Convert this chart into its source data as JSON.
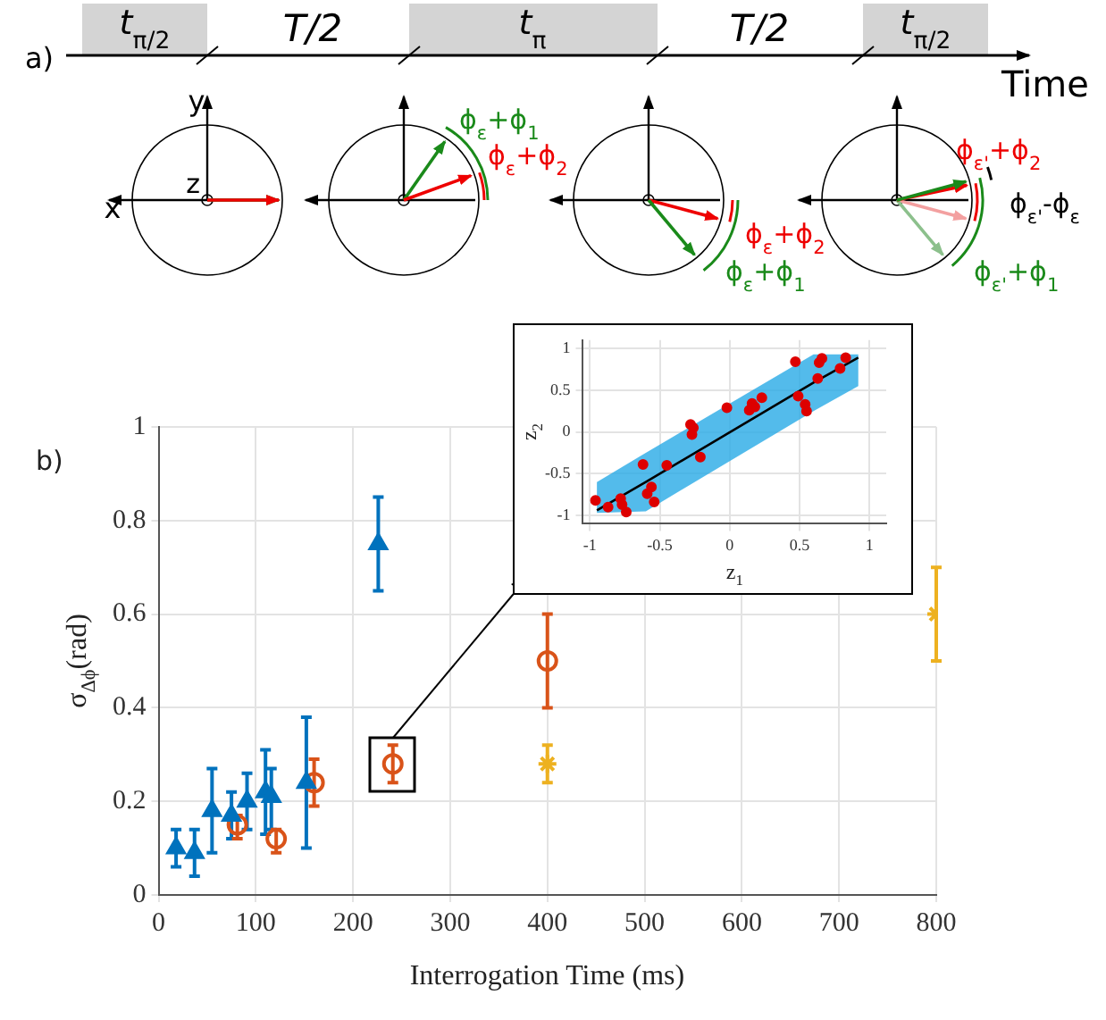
{
  "chart_data": [
    {
      "type": "other",
      "annotations": [
        "a)",
        "t$_{π/2}$",
        "T/2",
        "t$_{π}$",
        "T/2",
        "t$_{π/2}$",
        "Time",
        "y",
        "z",
        "x",
        "ϕ$_{ε}$+ϕ$_{1}$",
        "ϕ$_{ε}$+ϕ$_{2}$",
        "ϕ$_{ε}$+ϕ$_{2}$",
        "ϕ$_{ε}$+ϕ$_{1}$",
        "ϕ$_{ε'}$+ϕ$_{2}$",
        "ϕ$_{ε'}$-ϕ$_{ε}$",
        "ϕ$_{ε'}$+ϕ$_{1}$"
      ]
    },
    {
      "type": "scatter",
      "xlabel": "Interrogation Time (ms)",
      "ylabel": "σ$_{Δϕ}$(rad)",
      "annotations": [
        "b)"
      ],
      "xlim": [
        0,
        800
      ],
      "xticks": [
        0,
        100,
        200,
        300,
        400,
        500,
        600,
        700,
        800
      ],
      "ylim": [
        0,
        1
      ],
      "yticks": [
        0,
        0.2,
        0.4,
        0.6,
        0.8,
        1
      ],
      "grid": true,
      "series": [
        {
          "color": "#0072bd",
          "marker": "triangle",
          "x": [
            18,
            37,
            55,
            75,
            91,
            110,
            116,
            152,
            226
          ],
          "values": [
            0.1,
            0.09,
            0.18,
            0.17,
            0.2,
            0.22,
            0.21,
            0.24,
            0.75
          ],
          "errors": [
            [
              0.06,
              0.14
            ],
            [
              0.04,
              0.14
            ],
            [
              0.09,
              0.27
            ],
            [
              0.12,
              0.22
            ],
            [
              0.14,
              0.26
            ],
            [
              0.13,
              0.31
            ],
            [
              0.14,
              0.27
            ],
            [
              0.1,
              0.38
            ],
            [
              0.65,
              0.85
            ]
          ]
        },
        {
          "color": "#d95319",
          "marker": "circle",
          "x": [
            81,
            121,
            160,
            241,
            400
          ],
          "values": [
            0.15,
            0.12,
            0.24,
            0.28,
            0.5
          ],
          "errors": [
            [
              0.12,
              0.17
            ],
            [
              0.09,
              0.14
            ],
            [
              0.19,
              0.29
            ],
            [
              0.24,
              0.32
            ],
            [
              0.4,
              0.6
            ]
          ]
        },
        {
          "color": "#edb120",
          "marker": "cross",
          "x": [
            400,
            800
          ],
          "values": [
            0.28,
            0.6
          ],
          "errors": [
            [
              0.24,
              0.32
            ],
            [
              0.5,
              0.7
            ]
          ]
        }
      ]
    },
    {
      "type": "scatter",
      "xlabel": "z$_{1}$",
      "ylabel": "z$_{2}$",
      "xlim": [
        -1.05,
        1.12
      ],
      "xticks": [
        -1,
        -0.5,
        0,
        0.5,
        1
      ],
      "ylim": [
        -1.1,
        1.1
      ],
      "yticks": [
        -1,
        -0.5,
        0,
        0.5,
        1
      ],
      "grid": true,
      "series": [
        {
          "type": "scatter",
          "color": "#dd0000",
          "marker": "circle",
          "x": [
            -0.96,
            -0.87,
            -0.78,
            -0.77,
            -0.74,
            -0.62,
            -0.59,
            -0.56,
            -0.54,
            -0.45,
            -0.28,
            -0.26,
            -0.27,
            -0.21,
            -0.02,
            0.14,
            0.16,
            0.18,
            0.23,
            0.47,
            0.49,
            0.54,
            0.55,
            0.63,
            0.64,
            0.66,
            0.79,
            0.83
          ],
          "values": [
            -0.82,
            -0.9,
            -0.8,
            -0.87,
            -0.96,
            -0.39,
            -0.74,
            -0.66,
            -0.84,
            -0.4,
            0.09,
            0.05,
            -0.03,
            -0.3,
            0.29,
            0.26,
            0.34,
            0.3,
            0.41,
            0.84,
            0.43,
            0.33,
            0.25,
            0.64,
            0.83,
            0.88,
            0.76,
            0.89
          ]
        },
        {
          "type": "line",
          "color": "#000000",
          "x": [
            -0.95,
            -0.6,
            0.6,
            0.92
          ],
          "values": [
            -0.94,
            -0.6,
            0.59,
            0.89
          ],
          "lower": [
            -0.97,
            -0.95,
            0.25,
            0.55
          ],
          "upper": [
            -0.6,
            -0.25,
            0.93,
            0.93
          ]
        }
      ]
    }
  ]
}
